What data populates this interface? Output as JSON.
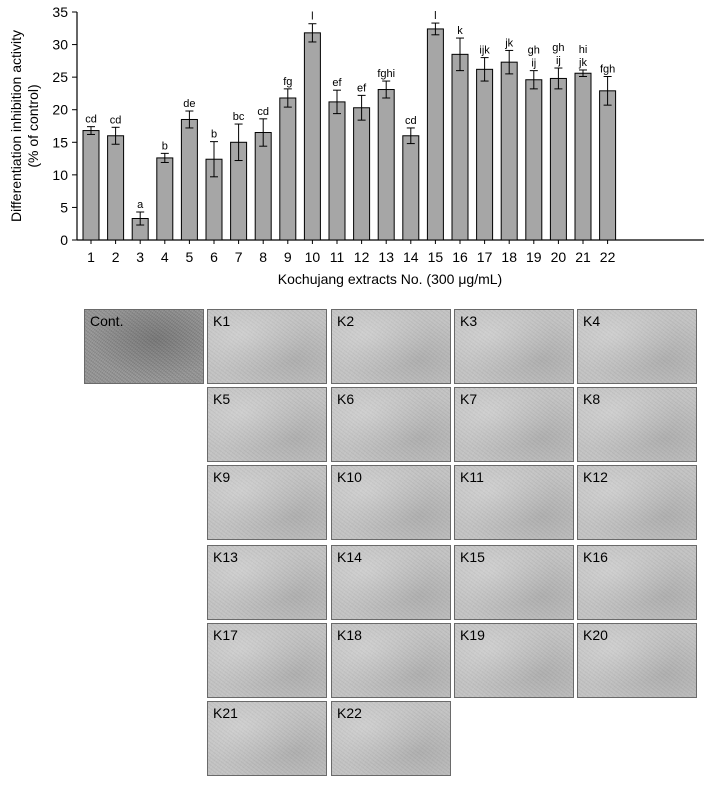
{
  "chart_data": {
    "type": "bar",
    "title": "",
    "xlabel": "Kochujang extracts No. (300 μg/mL)",
    "ylabel_line1": "Differentiation inhibition activity",
    "ylabel_line2": "(% of control)",
    "ylim": [
      0,
      35
    ],
    "yticks": [
      "0",
      "5",
      "10",
      "15",
      "20",
      "25",
      "30",
      "35"
    ],
    "categories": [
      "1",
      "2",
      "3",
      "4",
      "5",
      "6",
      "7",
      "8",
      "9",
      "10",
      "11",
      "12",
      "13",
      "14",
      "15",
      "16",
      "17",
      "18",
      "19",
      "20",
      "21",
      "22"
    ],
    "values": [
      16.8,
      16.0,
      3.3,
      12.6,
      18.5,
      12.4,
      15.0,
      16.5,
      21.8,
      31.8,
      21.2,
      20.3,
      23.1,
      16.0,
      32.4,
      28.5,
      26.2,
      27.3,
      24.6,
      24.8,
      25.6,
      22.9
    ],
    "errors": [
      0.6,
      1.3,
      1.0,
      0.7,
      1.3,
      2.7,
      2.8,
      2.1,
      1.4,
      1.4,
      1.8,
      1.9,
      1.3,
      1.2,
      0.9,
      2.5,
      1.8,
      1.8,
      1.4,
      1.6,
      0.5,
      2.2
    ],
    "significance_letters": [
      [
        "cd"
      ],
      [
        "cd"
      ],
      [
        "a"
      ],
      [
        "b"
      ],
      [
        "de"
      ],
      [
        "b"
      ],
      [
        "bc"
      ],
      [
        "cd"
      ],
      [
        "fg"
      ],
      [
        "l"
      ],
      [
        "ef"
      ],
      [
        "ef"
      ],
      [
        "fghi"
      ],
      [
        "cd"
      ],
      [
        "l"
      ],
      [
        "k"
      ],
      [
        "ijk"
      ],
      [
        "jk"
      ],
      [
        "gh",
        "ij"
      ],
      [
        "gh",
        "ij"
      ],
      [
        "hi",
        "jk"
      ],
      [
        "fgh"
      ]
    ],
    "bar_color": "#a6a6a6",
    "grid": false,
    "legend": "none"
  },
  "micrographs": {
    "rows": [
      [
        {
          "label": "Cont."
        },
        {
          "label": "K1"
        },
        {
          "label": "K2"
        },
        {
          "label": "K3"
        },
        {
          "label": "K4"
        }
      ],
      [
        {
          "label": "K5"
        },
        {
          "label": "K6"
        },
        {
          "label": "K7"
        },
        {
          "label": "K8"
        }
      ],
      [
        {
          "label": "K9"
        },
        {
          "label": "K10"
        },
        {
          "label": "K11"
        },
        {
          "label": "K12"
        }
      ],
      [
        {
          "label": "K13"
        },
        {
          "label": "K14"
        },
        {
          "label": "K15"
        },
        {
          "label": "K16"
        }
      ],
      [
        {
          "label": "K17"
        },
        {
          "label": "K18"
        },
        {
          "label": "K19"
        },
        {
          "label": "K20"
        }
      ],
      [
        {
          "label": "K21"
        },
        {
          "label": "K22"
        }
      ]
    ]
  }
}
